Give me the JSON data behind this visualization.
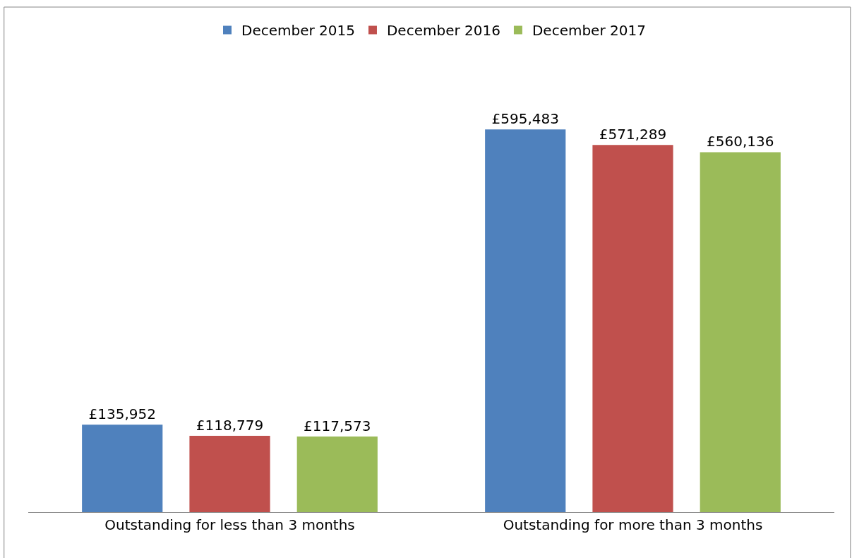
{
  "chart_data": {
    "type": "bar",
    "categories": [
      "Outstanding for less than 3 months",
      "Outstanding for more than 3 months"
    ],
    "series": [
      {
        "name": "December 2015",
        "color": "#4f81bd",
        "values": [
          135952,
          595483
        ],
        "value_labels": [
          "£135,952",
          "£595,483"
        ]
      },
      {
        "name": "December 2016",
        "color": "#c0504d",
        "values": [
          118779,
          571289
        ],
        "value_labels": [
          "£118,779",
          "£571,289"
        ]
      },
      {
        "name": "December 2017",
        "color": "#9bbb59",
        "values": [
          117573,
          560136
        ],
        "value_labels": [
          "£117,573",
          "£560,136"
        ]
      }
    ],
    "legend": "top"
  }
}
